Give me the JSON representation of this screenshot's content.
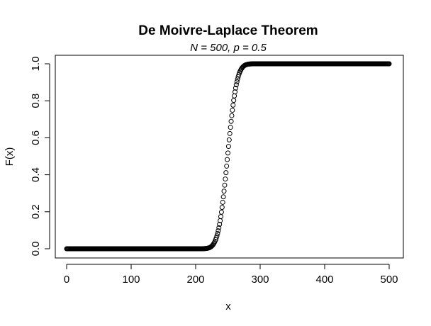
{
  "chart_data": {
    "type": "scatter",
    "title": "De Moivre-Laplace Theorem",
    "subtitle": "N = 500,  p = 0.5",
    "xlabel": "x",
    "ylabel": "F(x)",
    "xlim": [
      0,
      500
    ],
    "ylim": [
      0,
      1
    ],
    "x_ticks": [
      0,
      100,
      200,
      300,
      400,
      500
    ],
    "y_ticks": [
      0.0,
      0.2,
      0.4,
      0.6,
      0.8,
      1.0
    ],
    "x_tick_labels": [
      "0",
      "100",
      "200",
      "300",
      "400",
      "500"
    ],
    "y_tick_labels": [
      "0.0",
      "0.2",
      "0.4",
      "0.6",
      "0.8",
      "1.0"
    ],
    "grid": false,
    "marker": "open-circle",
    "color": "#000000",
    "distribution": {
      "N": 500,
      "p": 0.5
    },
    "x_start": 0,
    "x_end": 500,
    "x_step": 1
  }
}
